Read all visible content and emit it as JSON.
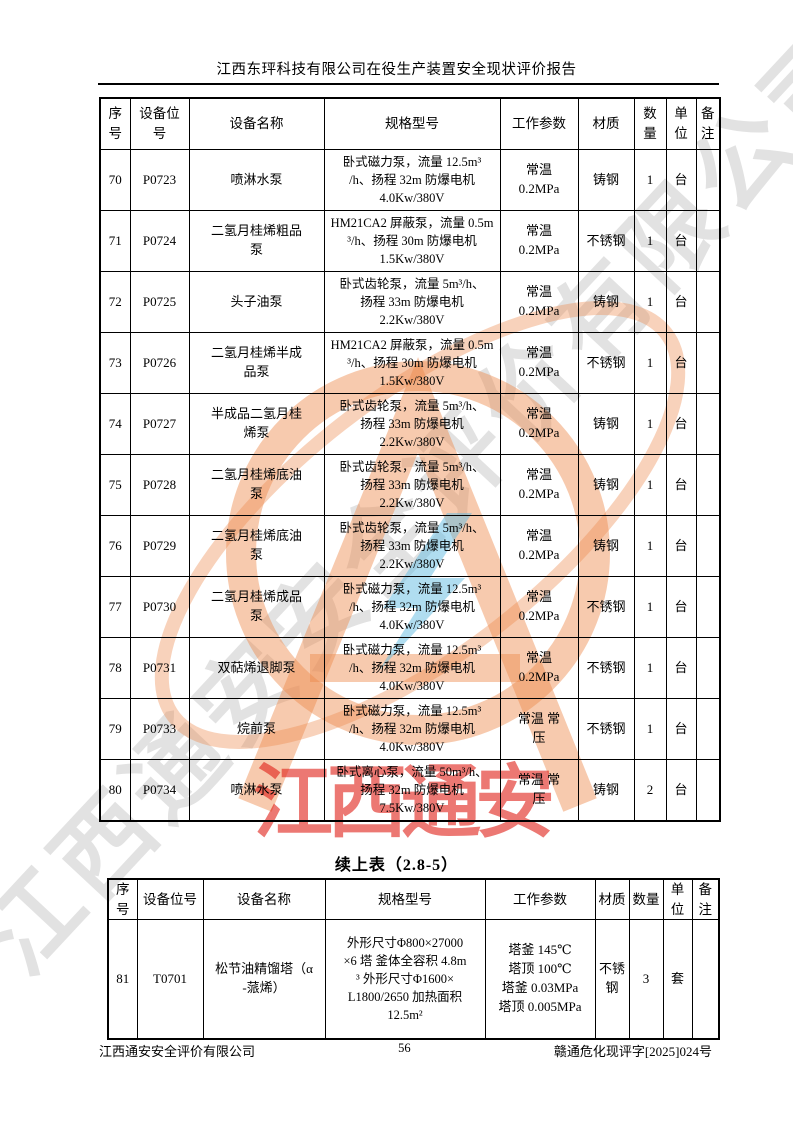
{
  "header": {
    "title": "江西东玶科技有限公司在役生产装置安全现状评价报告"
  },
  "table1": {
    "headers": [
      "序号",
      "设备位号",
      "设备名称",
      "规格型号",
      "工作参数",
      "材质",
      "数量",
      "单位",
      "备注"
    ],
    "rows": [
      {
        "no": "70",
        "tag": "P0723",
        "name": "喷淋水泵",
        "spec": "卧式磁力泵，流量 12.5m³\n/h、扬程 32m 防爆电机\n4.0Kw/380V",
        "params": "常温\n0.2MPa",
        "material": "铸钢",
        "qty": "1",
        "unit": "台",
        "note": ""
      },
      {
        "no": "71",
        "tag": "P0724",
        "name": "二氢月桂烯粗品\n泵",
        "spec": "HM21CA2 屏蔽泵，流量 0.5m\n³/h、扬程 30m 防爆电机\n1.5Kw/380V",
        "params": "常温\n0.2MPa",
        "material": "不锈钢",
        "qty": "1",
        "unit": "台",
        "note": ""
      },
      {
        "no": "72",
        "tag": "P0725",
        "name": "头子油泵",
        "spec": "卧式齿轮泵，流量 5m³/h、\n扬程 33m 防爆电机\n2.2Kw/380V",
        "params": "常温\n0.2MPa",
        "material": "铸钢",
        "qty": "1",
        "unit": "台",
        "note": ""
      },
      {
        "no": "73",
        "tag": "P0726",
        "name": "二氢月桂烯半成\n品泵",
        "spec": "HM21CA2 屏蔽泵，流量 0.5m\n³/h、扬程 30m 防爆电机\n1.5Kw/380V",
        "params": "常温\n0.2MPa",
        "material": "不锈钢",
        "qty": "1",
        "unit": "台",
        "note": ""
      },
      {
        "no": "74",
        "tag": "P0727",
        "name": "半成品二氢月桂\n烯泵",
        "spec": "卧式齿轮泵，流量 5m³/h、\n扬程 33m 防爆电机\n2.2Kw/380V",
        "params": "常温\n0.2MPa",
        "material": "铸钢",
        "qty": "1",
        "unit": "台",
        "note": ""
      },
      {
        "no": "75",
        "tag": "P0728",
        "name": "二氢月桂烯底油\n泵",
        "spec": "卧式齿轮泵，流量 5m³/h、\n扬程 33m 防爆电机\n2.2Kw/380V",
        "params": "常温\n0.2MPa",
        "material": "铸钢",
        "qty": "1",
        "unit": "台",
        "note": ""
      },
      {
        "no": "76",
        "tag": "P0729",
        "name": "二氢月桂烯底油\n泵",
        "spec": "卧式齿轮泵，流量 5m³/h、\n扬程 33m 防爆电机\n2.2Kw/380V",
        "params": "常温\n0.2MPa",
        "material": "铸钢",
        "qty": "1",
        "unit": "台",
        "note": ""
      },
      {
        "no": "77",
        "tag": "P0730",
        "name": "二氢月桂烯成品\n泵",
        "spec": "卧式磁力泵，流量 12.5m³\n/h、扬程 32m 防爆电机\n4.0Kw/380V",
        "params": "常温\n0.2MPa",
        "material": "不锈钢",
        "qty": "1",
        "unit": "台",
        "note": ""
      },
      {
        "no": "78",
        "tag": "P0731",
        "name": "双萜烯退脚泵",
        "spec": "卧式磁力泵，流量 12.5m³\n/h、扬程 32m 防爆电机\n4.0Kw/380V",
        "params": "常温\n0.2MPa",
        "material": "不锈钢",
        "qty": "1",
        "unit": "台",
        "note": ""
      },
      {
        "no": "79",
        "tag": "P0733",
        "name": "烷前泵",
        "spec": "卧式磁力泵，流量 12.5m³\n/h、扬程 32m 防爆电机\n4.0Kw/380V",
        "params": "常温 常\n压",
        "material": "不锈钢",
        "qty": "1",
        "unit": "台",
        "note": ""
      },
      {
        "no": "80",
        "tag": "P0734",
        "name": "喷淋水泵",
        "spec": "卧式离心泵，流量 50m³/h、\n扬程 32m 防爆电机\n7.5Kw/380V",
        "params": "常温  常\n压",
        "material": "铸钢",
        "qty": "2",
        "unit": "台",
        "note": ""
      }
    ]
  },
  "table2": {
    "title": "续上表（2.8-5）",
    "headers": [
      "序号",
      "设备位号",
      "设备名称",
      "规格型号",
      "工作参数",
      "材质",
      "数量",
      "单位",
      "备注"
    ],
    "rows": [
      {
        "no": "81",
        "tag": "T0701",
        "name": "松节油精馏塔（α\n-蒎烯）",
        "spec": "外形尺寸Φ800×27000\n×6 塔  釜体全容积 4.8m\n³  外形尺寸Φ1600×\nL1800/2650 加热面积\n12.5m²",
        "params": "塔釜 145℃\n塔顶 100℃\n塔釜 0.03MPa\n塔顶 0.005MPa",
        "material": "不锈钢",
        "qty": "3",
        "unit": "套",
        "note": ""
      }
    ]
  },
  "footer": {
    "company": "江西通安安全评价有限公司",
    "page_number": "56",
    "doc_number": "赣通危化现评字[2025]024号"
  },
  "watermark": {
    "diagonal_text": "江西通安安全评价有限公司",
    "red_text": "江西通安",
    "orange": "#ed8a4c",
    "blue": "#62bce2",
    "gray": "#969696",
    "red": "#e01e16"
  }
}
